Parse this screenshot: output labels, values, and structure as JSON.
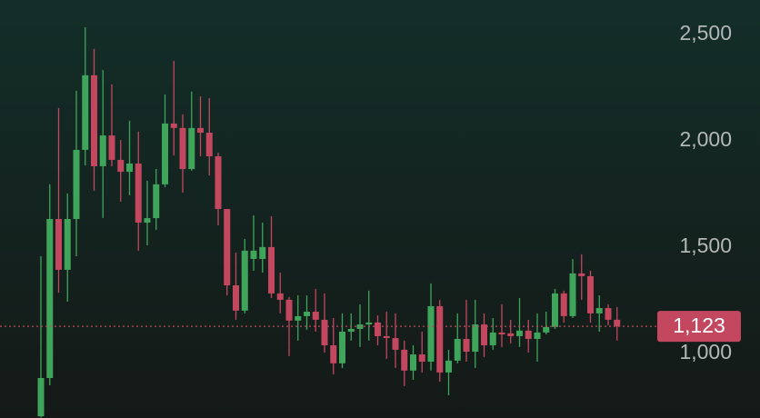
{
  "chart_data": {
    "type": "candlestick",
    "ylim": [
      692,
      2658
    ],
    "yticks": [
      {
        "value": 1000,
        "label": "1,000"
      },
      {
        "value": 1500,
        "label": "1,500"
      },
      {
        "value": 2000,
        "label": "2,000"
      },
      {
        "value": 2500,
        "label": "2,500"
      }
    ],
    "up_color": "#3fa55b",
    "down_color": "#c2475f",
    "last_price": {
      "value": 1123,
      "label": "1,123"
    },
    "open": [
      700,
      880,
      1628,
      1389,
      1628,
      1953,
      2304,
      1876,
      2021,
      1906,
      1850,
      1889,
      1611,
      1632,
      1791,
      2077,
      2056,
      1863,
      2056,
      2034,
      1923,
      1675,
      1316,
      1197,
      1440,
      1440,
      1496,
      1278,
      1248,
      1150,
      1171,
      1192,
      1154,
      1034,
      949,
      1098,
      1111,
      1132,
      1141,
      1077,
      1068,
      1013,
      915,
      991,
      957,
      1218,
      906,
      962,
      1064,
      1004,
      1132,
      1034,
      1094,
      1090,
      1077,
      1103,
      1064,
      1094,
      1120,
      1278,
      1171,
      1372,
      1359,
      1184,
      1209,
      1154
    ],
    "high": [
      1453,
      1791,
      2150,
      1748,
      2231,
      2530,
      2428,
      2329,
      2261,
      2000,
      2090,
      2039,
      1808,
      1863,
      2214,
      2372,
      2120,
      2227,
      2205,
      2197,
      1940,
      1675,
      1470,
      1534,
      1645,
      1611,
      1641,
      1376,
      1261,
      1269,
      1269,
      1299,
      1278,
      1162,
      1184,
      1184,
      1227,
      1291,
      1175,
      1192,
      1184,
      1056,
      1034,
      1098,
      1325,
      1248,
      1013,
      1184,
      1248,
      1248,
      1184,
      1162,
      1227,
      1154,
      1256,
      1154,
      1184,
      1192,
      1299,
      1291,
      1440,
      1462,
      1385,
      1269,
      1227,
      1214
    ],
    "low": [
      695,
      846,
      1282,
      1239,
      1453,
      1880,
      1761,
      1633,
      1876,
      1709,
      1739,
      1479,
      1504,
      1577,
      1778,
      1927,
      1752,
      1855,
      1923,
      1833,
      1598,
      1269,
      1154,
      1184,
      1385,
      1376,
      1256,
      1184,
      983,
      1056,
      1107,
      1098,
      1000,
      897,
      927,
      1056,
      1026,
      1056,
      1034,
      970,
      927,
      842,
      872,
      906,
      915,
      863,
      799,
      949,
      957,
      927,
      979,
      1013,
      1026,
      1043,
      1026,
      1000,
      957,
      1085,
      1111,
      1141,
      1162,
      1248,
      1141,
      1098,
      1128,
      1056
    ],
    "close": [
      880,
      1628,
      1389,
      1628,
      1953,
      2304,
      1876,
      2021,
      1906,
      1850,
      1889,
      1611,
      1632,
      1791,
      2077,
      2056,
      1863,
      2056,
      2034,
      1923,
      1675,
      1316,
      1197,
      1479,
      1479,
      1496,
      1278,
      1248,
      1150,
      1171,
      1192,
      1154,
      1034,
      949,
      1098,
      1111,
      1132,
      1141,
      1077,
      1068,
      1013,
      915,
      991,
      957,
      1218,
      906,
      962,
      1064,
      1004,
      1132,
      1034,
      1094,
      1085,
      1077,
      1103,
      1064,
      1094,
      1120,
      1278,
      1171,
      1372,
      1359,
      1184,
      1209,
      1154,
      1123
    ]
  }
}
